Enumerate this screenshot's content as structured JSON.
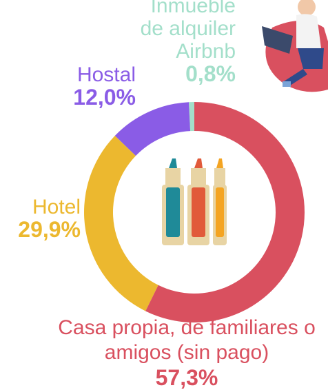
{
  "chart_data": {
    "type": "donut",
    "categories": [
      "Casa propia, de familiares o amigos (sin pago)",
      "Hotel",
      "Hostal",
      "Inmueble de alquiler Airbnb"
    ],
    "values": [
      57.3,
      29.9,
      12.0,
      0.8
    ],
    "value_labels": [
      "57,3%",
      "29,9%",
      "12,0%",
      "0,8%"
    ],
    "colors": [
      "#d9505f",
      "#ecb82f",
      "#8a5ce6",
      "#a3dfca"
    ]
  }
}
